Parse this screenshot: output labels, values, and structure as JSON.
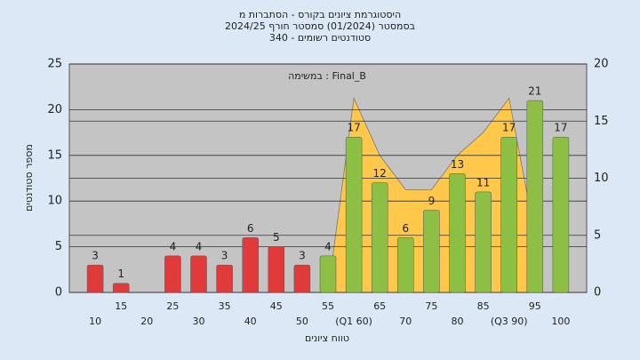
{
  "chart_data": {
    "type": "bar",
    "title": [
      "היסטוגרמת ציונים בקורס - הסתברות מ",
      "בסמסטר (01/2024) סמסטר חורף 2024/25",
      "סטודנטים רשומים - 340"
    ],
    "annotation": "במשימה : Final_B",
    "x_label": "טווח ציונים",
    "y_label": "מספר סטודנטים",
    "categories": [
      "10",
      "15",
      "20",
      "25",
      "30",
      "35",
      "40",
      "45",
      "50",
      "55",
      "(Q1 60)",
      "65",
      "70",
      "75",
      "80",
      "85",
      "(Q3 90)",
      "95",
      "100"
    ],
    "values": [
      3,
      1,
      null,
      4,
      4,
      3,
      6,
      5,
      3,
      4,
      17,
      12,
      6,
      9,
      13,
      11,
      17,
      21,
      17
    ],
    "colors": [
      "#e03a3a",
      "#e03a3a",
      "#e03a3a",
      "#e03a3a",
      "#e03a3a",
      "#e03a3a",
      "#e03a3a",
      "#e03a3a",
      "#e03a3a",
      "#8dbf45",
      "#8dbf45",
      "#8dbf45",
      "#8dbf45",
      "#8dbf45",
      "#8dbf45",
      "#8dbf45",
      "#8dbf45",
      "#8dbf45",
      "#8dbf45"
    ],
    "area": {
      "axis": "y2",
      "color": "#ffc84a",
      "values": [
        null,
        null,
        null,
        null,
        null,
        null,
        null,
        null,
        null,
        0,
        17,
        12,
        9,
        9,
        12,
        14,
        17,
        5,
        null
      ]
    },
    "ylim": [
      0,
      25
    ],
    "yticks": [
      0,
      5,
      10,
      15,
      20,
      25
    ],
    "y2lim": [
      0,
      20
    ],
    "y2ticks": [
      0,
      5,
      10,
      15,
      20
    ],
    "grid": true
  }
}
